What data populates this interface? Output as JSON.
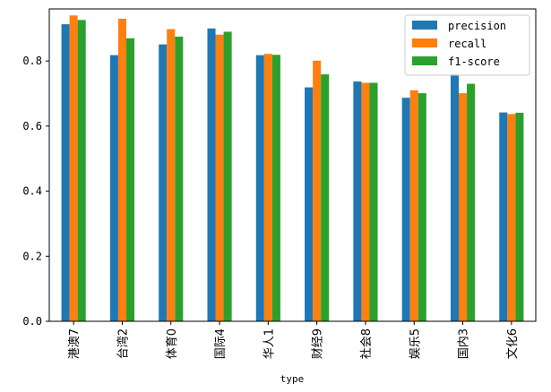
{
  "chart_data": {
    "type": "bar",
    "title": "",
    "xlabel": "type",
    "ylabel": "",
    "ylim": [
      0,
      0.96
    ],
    "yticks": [
      0.0,
      0.2,
      0.4,
      0.6,
      0.8
    ],
    "ytick_labels": [
      "0.0",
      "0.2",
      "0.4",
      "0.6",
      "0.8"
    ],
    "grid": false,
    "legend_position": "top-right",
    "categories": [
      "港澳7",
      "台湾2",
      "体育0",
      "国际4",
      "华人1",
      "财经9",
      "社会8",
      "娱乐5",
      "国内3",
      "文化6"
    ],
    "series": [
      {
        "name": "precision",
        "color": "#1f77b4",
        "values": [
          0.913,
          0.818,
          0.851,
          0.9,
          0.818,
          0.719,
          0.737,
          0.687,
          0.76,
          0.642
        ]
      },
      {
        "name": "recall",
        "color": "#ff7f0e",
        "values": [
          0.94,
          0.93,
          0.898,
          0.881,
          0.822,
          0.801,
          0.733,
          0.71,
          0.701,
          0.637
        ]
      },
      {
        "name": "f1-score",
        "color": "#2ca02c",
        "values": [
          0.926,
          0.87,
          0.875,
          0.89,
          0.819,
          0.759,
          0.733,
          0.701,
          0.73,
          0.641
        ]
      }
    ]
  }
}
